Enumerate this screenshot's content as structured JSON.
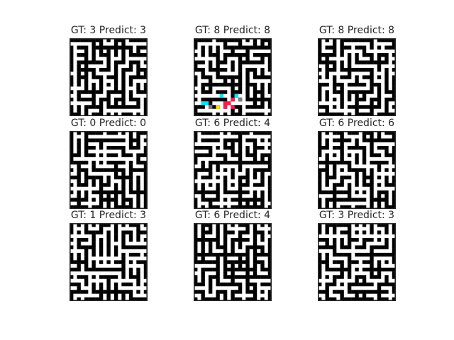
{
  "panels": [
    {
      "title": "GT: 3 Predict: 3",
      "gt": 3,
      "predict": 3
    },
    {
      "title": "GT: 8 Predict: 8",
      "gt": 8,
      "predict": 8,
      "has_color_overlay": true
    },
    {
      "title": "GT: 8 Predict: 8",
      "gt": 8,
      "predict": 8
    },
    {
      "title": "GT: 0 Predict: 0",
      "gt": 0,
      "predict": 0
    },
    {
      "title": "GT: 6 Predict: 4",
      "gt": 6,
      "predict": 4
    },
    {
      "title": "GT: 6 Predict: 6",
      "gt": 6,
      "predict": 6
    },
    {
      "title": "GT: 1 Predict: 3",
      "gt": 1,
      "predict": 3
    },
    {
      "title": "GT: 6 Predict: 4",
      "gt": 6,
      "predict": 4
    },
    {
      "title": "GT: 3 Predict: 3",
      "gt": 3,
      "predict": 3
    }
  ],
  "colors": {
    "wall": "#000000",
    "path": "#ffffff",
    "frame": "#262626",
    "overlay": [
      "#00e5ff",
      "#ff1a4d",
      "#ffe600",
      "#7a7a7a"
    ]
  }
}
